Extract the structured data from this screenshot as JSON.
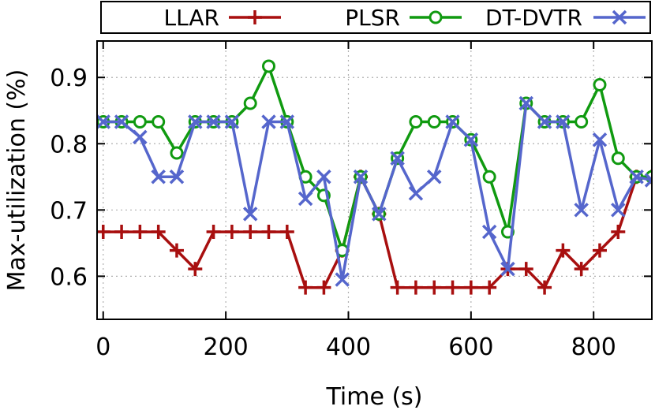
{
  "chart_data": {
    "type": "line",
    "xlabel": "Time (s)",
    "ylabel": "Max-utilization (%)",
    "xlim": [
      -10,
      895
    ],
    "ylim": [
      0.535,
      0.955
    ],
    "xticks": [
      0,
      200,
      400,
      600,
      800
    ],
    "yticks": [
      0.6,
      0.7,
      0.8,
      0.9
    ],
    "ytick_labels": [
      "0.6",
      "0.7",
      "0.8",
      "0.9"
    ],
    "grid": true,
    "legend_position": "top",
    "series": [
      {
        "name": "LLAR",
        "color": "#a80f0f",
        "marker": "plus",
        "x": [
          0,
          30,
          60,
          90,
          120,
          150,
          180,
          210,
          240,
          270,
          300,
          330,
          360,
          390,
          420,
          450,
          480,
          510,
          540,
          570,
          600,
          630,
          660,
          690,
          720,
          750,
          780,
          810,
          840,
          870,
          895
        ],
        "y": [
          0.667,
          0.667,
          0.667,
          0.667,
          0.639,
          0.611,
          0.667,
          0.667,
          0.667,
          0.667,
          0.667,
          0.583,
          0.583,
          0.639,
          0.75,
          0.694,
          0.583,
          0.583,
          0.583,
          0.583,
          0.583,
          0.583,
          0.611,
          0.611,
          0.583,
          0.639,
          0.611,
          0.639,
          0.667,
          0.75,
          0.75
        ]
      },
      {
        "name": "PLSR",
        "color": "#109a10",
        "marker": "circle",
        "x": [
          0,
          30,
          60,
          90,
          120,
          150,
          180,
          210,
          240,
          270,
          300,
          330,
          360,
          390,
          420,
          450,
          480,
          510,
          540,
          570,
          600,
          630,
          660,
          690,
          720,
          750,
          780,
          810,
          840,
          870,
          895
        ],
        "y": [
          0.833,
          0.833,
          0.833,
          0.833,
          0.786,
          0.833,
          0.833,
          0.833,
          0.861,
          0.917,
          0.833,
          0.75,
          0.722,
          0.639,
          0.75,
          0.694,
          0.778,
          0.833,
          0.833,
          0.833,
          0.806,
          0.75,
          0.667,
          0.861,
          0.833,
          0.833,
          0.833,
          0.889,
          0.778,
          0.75,
          0.75
        ]
      },
      {
        "name": "DT-DVTR",
        "color": "#5566cc",
        "marker": "x",
        "x": [
          0,
          30,
          60,
          90,
          120,
          150,
          180,
          210,
          240,
          270,
          300,
          330,
          360,
          390,
          420,
          450,
          480,
          510,
          540,
          570,
          600,
          630,
          660,
          690,
          720,
          750,
          780,
          810,
          840,
          870,
          895
        ],
        "y": [
          0.833,
          0.833,
          0.81,
          0.75,
          0.75,
          0.833,
          0.833,
          0.833,
          0.694,
          0.833,
          0.833,
          0.717,
          0.75,
          0.595,
          0.75,
          0.694,
          0.778,
          0.725,
          0.75,
          0.833,
          0.806,
          0.667,
          0.611,
          0.861,
          0.833,
          0.833,
          0.7,
          0.806,
          0.7,
          0.75,
          0.745
        ]
      }
    ]
  }
}
